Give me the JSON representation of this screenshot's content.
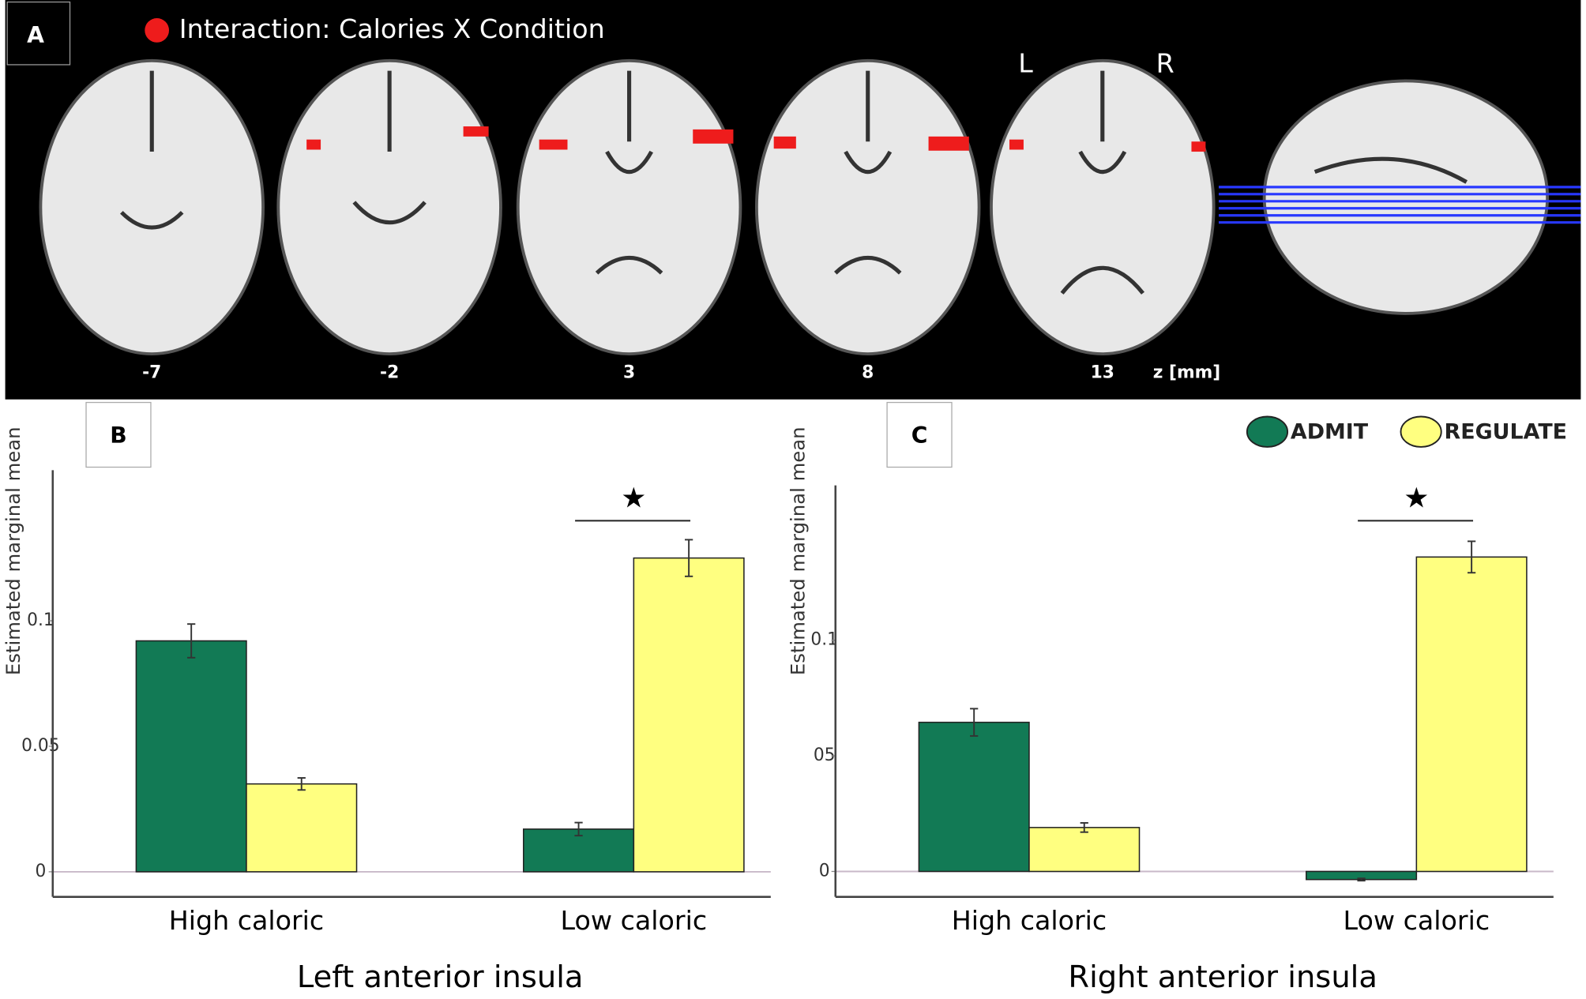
{
  "panel_a": {
    "label": "A",
    "legend": "Interaction: Calories X Condition",
    "slices": [
      "-7",
      "-2",
      "3",
      "8",
      "13"
    ],
    "unit": "z [mm]",
    "left": "L",
    "right": "R"
  },
  "chart_data": [
    {
      "type": "bar",
      "panel_label": "B",
      "xlabel": "Left anterior insula",
      "ylabel": "Estimated marginal mean",
      "categories": [
        "High caloric",
        "Low caloric"
      ],
      "series": [
        {
          "color": "#127a55",
          "values": [
            0.092,
            0.017
          ],
          "errors": [
            0.0067,
            0.0026
          ]
        },
        {
          "color": "#ffff80",
          "values": [
            0.035,
            0.125
          ],
          "errors": [
            0.0024,
            0.0073
          ]
        }
      ],
      "ylim": [
        -0.01,
        0.16
      ],
      "yticks": [
        0,
        0.05,
        0.1
      ],
      "annotation": "★"
    },
    {
      "type": "bar",
      "panel_label": "C",
      "xlabel": "Right anterior insula",
      "ylabel": "Estimated marginal mean",
      "categories": [
        "High caloric",
        "Low caloric"
      ],
      "series": [
        {
          "name": "ADMIT",
          "color": "#127a55",
          "values": [
            0.0645,
            -0.0035
          ],
          "errors": [
            0.0059,
            0.0005
          ]
        },
        {
          "name": "REGULATE",
          "color": "#ffff80",
          "values": [
            0.019,
            0.136
          ],
          "errors": [
            0.002,
            0.0068
          ]
        }
      ],
      "ylim": [
        -0.011,
        0.167
      ],
      "yticks": [
        0,
        {
          "value": 0.05,
          "label": "05"
        },
        0.1
      ],
      "annotation": "★"
    }
  ]
}
